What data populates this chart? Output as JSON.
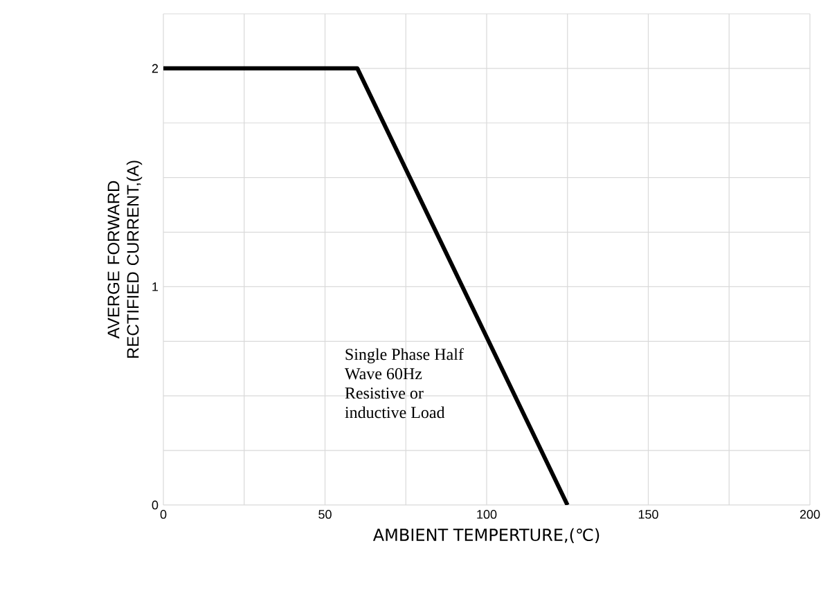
{
  "chart_data": {
    "type": "line",
    "xlabel": "AMBIENT TEMPERTURE,(℃)",
    "ylabel": "AVERGE FORWARD RECTIFIED CURRENT,(A)",
    "annotations": [
      "Single Phase Half",
      "Wave 60Hz",
      "Resistive or",
      "inductive Load"
    ],
    "x": [
      0,
      60,
      125
    ],
    "series": [
      {
        "color": "#000000",
        "values": [
          2,
          2,
          0
        ]
      }
    ],
    "xlim": [
      0,
      200
    ],
    "xticks": [
      0,
      {
        "value": 25,
        "label": null
      },
      50,
      {
        "value": 75,
        "label": null
      },
      100,
      {
        "value": 125,
        "label": null
      },
      150,
      {
        "value": 175,
        "label": null
      },
      200
    ],
    "ylim": [
      0,
      2.25
    ],
    "yticks": [
      0,
      {
        "value": 0.25,
        "label": null
      },
      {
        "value": 0.5,
        "label": null
      },
      {
        "value": 0.75,
        "label": null
      },
      1,
      {
        "value": 1.25,
        "label": null
      },
      {
        "value": 1.5,
        "label": null
      },
      {
        "value": 1.75,
        "label": null
      },
      2,
      {
        "value": 2.25,
        "label": null
      }
    ],
    "grid": true,
    "line_style": "solid"
  }
}
